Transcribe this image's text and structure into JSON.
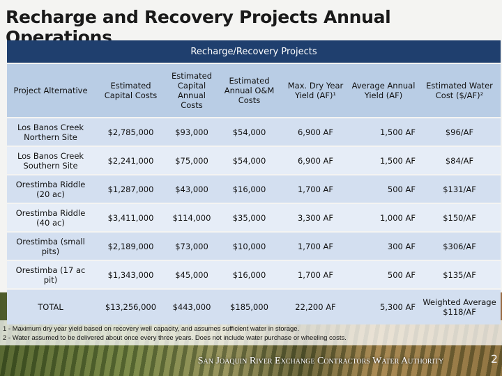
{
  "title": "Recharge and Recovery Projects Annual Operations",
  "table": {
    "caption": "Recharge/Recovery Projects",
    "columns": [
      "Project Alternative",
      "Estimated Capital Costs",
      "Estimated Capital Annual Costs",
      "Estimated Annual O&M Costs",
      "Max. Dry Year Yield (AF)¹",
      "Average Annual Yield (AF)",
      "Estimated Water Cost ($/AF)²"
    ],
    "rows": [
      [
        "Los Banos Creek Northern Site",
        "$2,785,000",
        "$93,000",
        "$54,000",
        "6,900 AF",
        "1,500 AF",
        "$96/AF"
      ],
      [
        "Los Banos Creek Southern Site",
        "$2,241,000",
        "$75,000",
        "$54,000",
        "6,900 AF",
        "1,500 AF",
        "$84/AF"
      ],
      [
        "Orestimba Riddle (20 ac)",
        "$1,287,000",
        "$43,000",
        "$16,000",
        "1,700 AF",
        "500 AF",
        "$131/AF"
      ],
      [
        "Orestimba Riddle (40 ac)",
        "$3,411,000",
        "$114,000",
        "$35,000",
        "3,300 AF",
        "1,000 AF",
        "$150/AF"
      ],
      [
        "Orestimba (small pits)",
        "$2,189,000",
        "$73,000",
        "$10,000",
        "1,700 AF",
        "300 AF",
        "$306/AF"
      ],
      [
        "Orestimba (17 ac pit)",
        "$1,343,000",
        "$45,000",
        "$16,000",
        "1,700 AF",
        "500 AF",
        "$135/AF"
      ],
      [
        "TOTAL",
        "$13,256,000",
        "$443,000",
        "$185,000",
        "22,200 AF",
        "5,300 AF",
        "Weighted Average $118/AF"
      ]
    ]
  },
  "footnotes": [
    "1 - Maximum dry year yield based on recovery well capacity, and assumes sufficient water in storage.",
    "2 - Water assumed to be delivered about once every three years. Does not include water purchase or wheeling costs."
  ],
  "footer": "San Joaquin River Exchange Contractors Water Authority",
  "page_number": "2"
}
